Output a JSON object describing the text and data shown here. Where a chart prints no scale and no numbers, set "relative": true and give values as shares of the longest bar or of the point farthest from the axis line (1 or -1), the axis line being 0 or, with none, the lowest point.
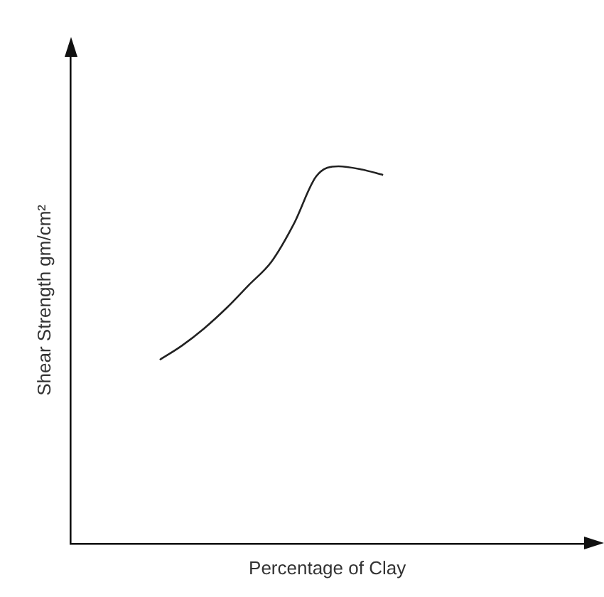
{
  "chart_data": {
    "type": "line",
    "relative": true,
    "xlabel": "Percentage of Clay",
    "ylabel": "Shear Strength gm/cm²",
    "categories": [
      null,
      null,
      null,
      null,
      null,
      null,
      null,
      null,
      null,
      null,
      null,
      null,
      null,
      null,
      null,
      null,
      null,
      null,
      null,
      null,
      null,
      null,
      null,
      null
    ],
    "series": [
      {
        "color": "#222222",
        "values": [
          null,
          null,
          null,
          null,
          0.487,
          0.525,
          0.571,
          0.625,
          0.686,
          0.747,
          0.847,
          0.973,
          1,
          0.992,
          0.977,
          null,
          null,
          null,
          null,
          null,
          null,
          null,
          null,
          null
        ]
      }
    ],
    "marker": "none",
    "line_style": "solid",
    "grid": false,
    "legend": false
  }
}
